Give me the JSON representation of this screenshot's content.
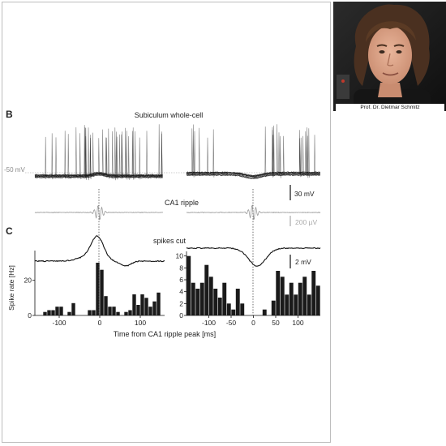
{
  "figure": {
    "panel_b": {
      "letter": "B",
      "title": "Subiculum whole-cell",
      "level_label": "-50 mV",
      "scale_voltage": "30 mV",
      "ripple_label": "CA1 ripple",
      "scale_ripple": "200 µV"
    },
    "panel_c": {
      "letter": "C",
      "spikes_cut_label": "spikes cut",
      "scale_potential": "2 mV",
      "ylabel": "Spike rate [Hz]",
      "xlabel": "Time from CA1 ripple peak [ms]"
    }
  },
  "photo": {
    "caption": "Prof. Dr. Dietmar Schmitz"
  },
  "chart_data": [
    {
      "type": "bar",
      "ylabel": "Spike rate [Hz]",
      "xlabel": "Time from CA1 ripple peak [ms]",
      "x_ticks": [
        -100,
        0,
        100
      ],
      "y_ticks": [
        0,
        20
      ],
      "xlim": [
        -160,
        160
      ],
      "ylim": [
        0,
        36
      ],
      "bin_width_ms": 10,
      "bin_centers": [
        -145,
        -135,
        -125,
        -115,
        -105,
        -95,
        -85,
        -75,
        -65,
        -55,
        -45,
        -35,
        -25,
        -15,
        -5,
        5,
        15,
        25,
        35,
        45,
        55,
        65,
        75,
        85,
        95,
        105,
        115,
        125,
        135,
        145
      ],
      "values": [
        0,
        2,
        3,
        3,
        5,
        5,
        0,
        2,
        7,
        0,
        0,
        0,
        3,
        3,
        30,
        26,
        11,
        5,
        5,
        2,
        0,
        2,
        3,
        12,
        6,
        12,
        10,
        5,
        8,
        13
      ]
    },
    {
      "type": "bar",
      "ylabel": "",
      "xlabel": "Time from CA1 ripple peak [ms]",
      "x_ticks": [
        -100,
        -50,
        0,
        50,
        100
      ],
      "y_ticks": [
        0,
        2,
        4,
        6,
        8,
        10
      ],
      "xlim": [
        -150,
        150
      ],
      "ylim": [
        0,
        10.5
      ],
      "bin_width_ms": 10,
      "bin_centers": [
        -145,
        -135,
        -125,
        -115,
        -105,
        -95,
        -85,
        -75,
        -65,
        -55,
        -45,
        -35,
        -25,
        -15,
        -5,
        5,
        15,
        25,
        35,
        45,
        55,
        65,
        75,
        85,
        95,
        105,
        115,
        125,
        135,
        145
      ],
      "values": [
        10,
        5.5,
        4.5,
        5.5,
        8.5,
        6.5,
        4.5,
        3,
        5.5,
        2,
        1,
        4.5,
        2,
        0,
        0,
        0,
        0,
        1,
        0,
        2.5,
        7.5,
        6.5,
        3.5,
        5.5,
        3.5,
        5.5,
        6.5,
        3.5,
        7.5,
        5
      ]
    }
  ]
}
